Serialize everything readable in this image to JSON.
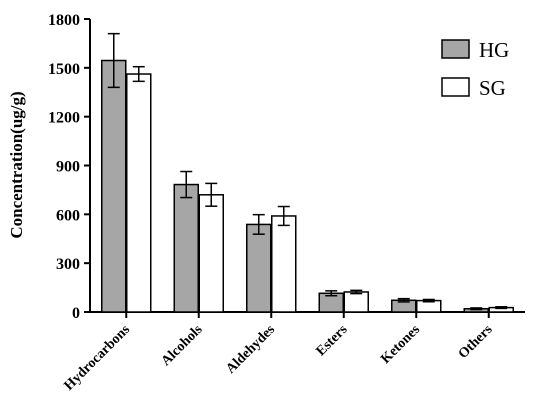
{
  "chart_data": {
    "type": "bar",
    "title": "",
    "xlabel": "",
    "ylabel": "Concentration(ug/g)",
    "ylim": [
      0,
      1800
    ],
    "yticks": [
      0,
      300,
      600,
      900,
      1200,
      1500,
      1800
    ],
    "categories": [
      "Hydrocarbons",
      "Alcohols",
      "Aldehydes",
      "Esters",
      "Ketones",
      "Others"
    ],
    "series": [
      {
        "name": "HG",
        "color": "#a6a6a6",
        "values": [
          1545,
          783,
          538,
          115,
          72,
          20
        ],
        "errors": [
          165,
          80,
          60,
          15,
          10,
          5
        ]
      },
      {
        "name": "SG",
        "color": "#ffffff",
        "values": [
          1462,
          720,
          590,
          123,
          70,
          27
        ],
        "errors": [
          45,
          70,
          58,
          10,
          7,
          5
        ]
      }
    ],
    "legend_position": "top-right",
    "grid": false,
    "error_bars": true
  }
}
